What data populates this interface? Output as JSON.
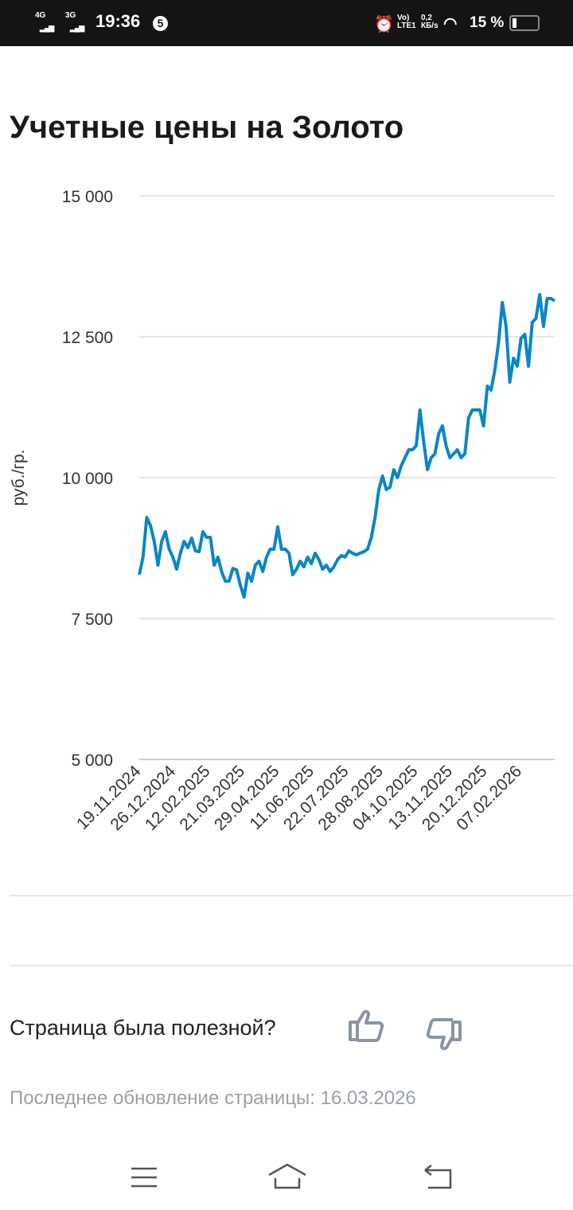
{
  "status_bar": {
    "net1": "4G",
    "net2": "3G",
    "time": "19:36",
    "notif_count": "5",
    "volte": "Vo) LTE1",
    "speed": "0,2 КБ/s",
    "battery": "15 %"
  },
  "page": {
    "title": "Учетные цены на Золото",
    "feedback_question": "Страница была полезной?",
    "last_update": "Последнее обновление страницы: 16.03.2026"
  },
  "chart_data": {
    "type": "line",
    "title": "Учетные цены на Золото",
    "ylabel": "руб./гр.",
    "xlabel": "",
    "ylim": [
      5000,
      15000
    ],
    "yticks": [
      5000,
      7500,
      10000,
      12500,
      15000
    ],
    "ytick_labels": [
      "5 000",
      "7 500",
      "10 000",
      "12 500",
      "15 000"
    ],
    "xtick_labels": [
      "19.11.2024",
      "26.12.2024",
      "12.02.2025",
      "21.03.2025",
      "29.04.2025",
      "11.06.2025",
      "22.07.2025",
      "28.08.2025",
      "04.10.2025",
      "13.11.2025",
      "20.12.2025",
      "07.02.2026"
    ],
    "x_range": [
      "19.11.2024",
      "16.03.2026"
    ],
    "grid": true,
    "color": "#0a86c8",
    "series": [
      {
        "name": "Золото",
        "values": [
          8277,
          8588,
          9294,
          9150,
          8870,
          8446,
          8870,
          9040,
          8730,
          8590,
          8376,
          8660,
          8870,
          8757,
          8927,
          8700,
          8686,
          9040,
          8940,
          8940,
          8446,
          8590,
          8333,
          8164,
          8164,
          8390,
          8362,
          8093,
          7880,
          8305,
          8164,
          8446,
          8517,
          8333,
          8590,
          8730,
          8730,
          9124,
          8730,
          8730,
          8660,
          8277,
          8376,
          8517,
          8418,
          8590,
          8475,
          8660,
          8545,
          8376,
          8446,
          8333,
          8418,
          8545,
          8616,
          8590,
          8700,
          8660,
          8630,
          8660,
          8686,
          8730,
          8940,
          9294,
          9788,
          10028,
          9788,
          9830,
          10141,
          10000,
          10212,
          10353,
          10494,
          10494,
          10565,
          11200,
          10635,
          10141,
          10353,
          10423,
          10777,
          10918,
          10565,
          10353,
          10423,
          10494,
          10353,
          10423,
          11060,
          11200,
          11200,
          11200,
          10918,
          11624,
          11554,
          11907,
          12401,
          13107,
          12684,
          11695,
          12119,
          11977,
          12472,
          12543,
          11977,
          12755,
          12825,
          13249,
          12684,
          13178,
          13178,
          13136
        ]
      }
    ]
  }
}
